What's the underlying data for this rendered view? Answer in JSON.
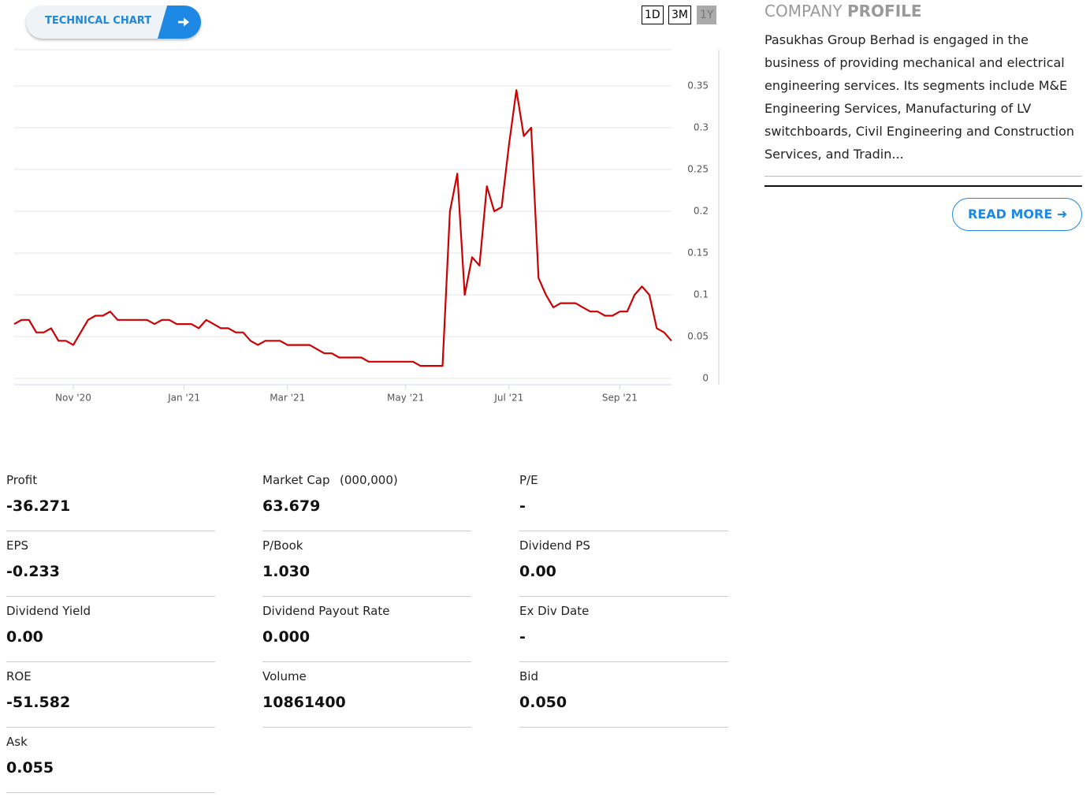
{
  "header": {
    "button": "TECHNICAL CHART"
  },
  "ranges": [
    "1D",
    "3M",
    "1Y"
  ],
  "chart_data": {
    "type": "line",
    "color": "#cc0000",
    "grid": true,
    "categories": [
      null,
      null,
      null,
      null,
      null,
      null,
      null,
      null,
      "Nov '20",
      null,
      null,
      null,
      null,
      null,
      null,
      null,
      null,
      null,
      null,
      null,
      null,
      null,
      null,
      "Jan '21",
      null,
      null,
      null,
      null,
      null,
      null,
      null,
      null,
      null,
      null,
      null,
      null,
      null,
      "Mar '21",
      null,
      null,
      null,
      null,
      null,
      null,
      null,
      null,
      null,
      null,
      null,
      null,
      null,
      null,
      null,
      "May '21",
      null,
      null,
      null,
      null,
      null,
      null,
      null,
      null,
      null,
      null,
      null,
      null,
      null,
      "Jul '21",
      null,
      null,
      null,
      null,
      null,
      null,
      null,
      null,
      null,
      null,
      null,
      null,
      null,
      null,
      "Sep '21",
      null,
      null,
      null,
      null,
      null,
      null,
      null
    ],
    "values": [
      0.065,
      0.07,
      0.07,
      0.055,
      0.055,
      0.06,
      0.045,
      0.045,
      0.04,
      0.055,
      0.07,
      0.075,
      0.075,
      0.08,
      0.07,
      0.07,
      0.07,
      0.07,
      0.07,
      0.065,
      0.07,
      0.07,
      0.065,
      0.065,
      0.065,
      0.06,
      0.07,
      0.065,
      0.06,
      0.06,
      0.055,
      0.055,
      0.045,
      0.04,
      0.045,
      0.045,
      0.045,
      0.04,
      0.04,
      0.04,
      0.04,
      0.035,
      0.03,
      0.03,
      0.025,
      0.025,
      0.025,
      0.025,
      0.02,
      0.02,
      0.02,
      0.02,
      0.02,
      0.02,
      0.02,
      0.015,
      0.015,
      0.015,
      0.015,
      0.2,
      0.245,
      0.1,
      0.145,
      0.135,
      0.23,
      0.2,
      0.205,
      0.28,
      0.345,
      0.29,
      0.3,
      0.12,
      0.1,
      0.085,
      0.09,
      0.09,
      0.09,
      0.085,
      0.08,
      0.08,
      0.075,
      0.075,
      0.08,
      0.08,
      0.1,
      0.11,
      0.1,
      0.06,
      0.055,
      0.045
    ],
    "ylim": [
      0,
      0.39
    ],
    "yticks": [
      0,
      0.05,
      0.1,
      0.15,
      0.2,
      0.25,
      0.3,
      0.35
    ]
  },
  "profile": {
    "title_light": "COMPANY",
    "title_bold": "PROFILE",
    "description": "Pasukhas Group Berhad is engaged in the business of providing mechanical and electrical engineering services. Its segments include M&E Engineering Services, Manufacturing of LV switchboards, Civil Engineering and Construction Services, and Tradin...",
    "button": "READ MORE"
  },
  "stats": [
    {
      "label": "Profit",
      "value": "-36.271"
    },
    {
      "label": "Market Cap",
      "unit": "(000,000)",
      "value": "63.679"
    },
    {
      "label": "P/E",
      "value": "-"
    },
    {
      "label": "EPS",
      "value": "-0.233"
    },
    {
      "label": "P/Book",
      "value": "1.030"
    },
    {
      "label": "Dividend PS",
      "value": "0.00"
    },
    {
      "label": "Dividend Yield",
      "value": "0.00"
    },
    {
      "label": "Dividend Payout Rate",
      "value": "0.000"
    },
    {
      "label": "Ex Div Date",
      "value": "-"
    },
    {
      "label": "ROE",
      "value": "-51.582"
    },
    {
      "label": "Volume",
      "value": "10861400"
    },
    {
      "label": "Bid",
      "value": "0.050"
    },
    {
      "label": "Ask",
      "value": "0.055"
    }
  ]
}
